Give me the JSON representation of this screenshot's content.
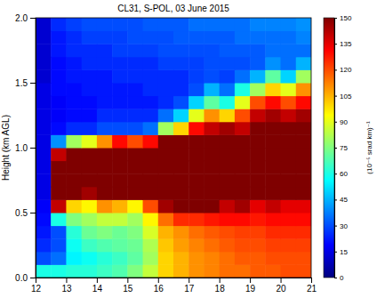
{
  "chart_data": {
    "type": "heatmap",
    "title": "CL31, S-POL, 03 June 2015",
    "ylabel": "Height (km AGL)",
    "colorbar_label": "(10⁻⁵ srad km)⁻¹",
    "xlim": [
      12,
      21
    ],
    "xticks": [
      12,
      13,
      14,
      15,
      16,
      17,
      18,
      19,
      20,
      21
    ],
    "ylim": [
      0,
      2
    ],
    "yticks": [
      {
        "value": 0,
        "label": "0.0"
      },
      {
        "value": 0.5,
        "label": "0.5"
      },
      {
        "value": 1,
        "label": "1.0"
      },
      {
        "value": 1.5,
        "label": "1.5"
      },
      {
        "value": 2,
        "label": "2.0"
      }
    ],
    "x_bins": [
      12,
      12.5,
      13,
      13.5,
      14,
      14.5,
      15,
      15.5,
      16,
      16.5,
      17,
      17.5,
      18,
      18.5,
      19,
      19.5,
      20,
      20.5,
      21
    ],
    "y_bins": [
      0,
      0.1,
      0.2,
      0.3,
      0.4,
      0.5,
      0.6,
      0.7,
      0.8,
      0.9,
      1.0,
      1.1,
      1.2,
      1.3,
      1.4,
      1.5,
      1.6,
      1.7,
      1.8,
      1.9,
      2.0
    ],
    "values": [
      [
        60,
        60,
        62,
        62,
        65,
        68,
        75,
        85,
        100,
        105,
        110,
        112,
        115,
        115,
        118,
        118,
        120,
        120
      ],
      [
        30,
        35,
        55,
        58,
        62,
        65,
        70,
        80,
        100,
        105,
        110,
        112,
        115,
        118,
        118,
        120,
        120,
        120
      ],
      [
        25,
        30,
        58,
        65,
        68,
        70,
        72,
        82,
        102,
        108,
        112,
        115,
        118,
        120,
        120,
        122,
        122,
        122
      ],
      [
        22,
        30,
        62,
        72,
        75,
        72,
        75,
        88,
        105,
        110,
        115,
        118,
        120,
        122,
        122,
        125,
        125,
        125
      ],
      [
        20,
        60,
        75,
        80,
        85,
        85,
        80,
        95,
        115,
        125,
        125,
        128,
        130,
        130,
        128,
        130,
        130,
        130
      ],
      [
        18,
        140,
        100,
        95,
        110,
        105,
        95,
        120,
        145,
        150,
        150,
        150,
        140,
        145,
        135,
        140,
        135,
        135
      ],
      [
        15,
        150,
        150,
        145,
        150,
        150,
        150,
        150,
        150,
        150,
        150,
        150,
        150,
        150,
        150,
        150,
        150,
        150
      ],
      [
        15,
        150,
        150,
        150,
        150,
        150,
        150,
        150,
        150,
        150,
        150,
        150,
        150,
        150,
        150,
        150,
        150,
        150
      ],
      [
        15,
        150,
        150,
        150,
        150,
        150,
        150,
        150,
        150,
        150,
        150,
        150,
        150,
        150,
        150,
        150,
        150,
        150
      ],
      [
        15,
        140,
        150,
        150,
        150,
        150,
        150,
        150,
        150,
        150,
        150,
        150,
        150,
        150,
        150,
        150,
        150,
        150
      ],
      [
        15,
        40,
        80,
        90,
        110,
        130,
        120,
        130,
        150,
        150,
        150,
        150,
        150,
        150,
        150,
        150,
        150,
        150
      ],
      [
        15,
        20,
        25,
        25,
        30,
        30,
        30,
        35,
        80,
        100,
        130,
        140,
        145,
        140,
        150,
        150,
        150,
        150
      ],
      [
        15,
        18,
        20,
        20,
        25,
        25,
        25,
        25,
        35,
        50,
        90,
        110,
        100,
        120,
        140,
        145,
        140,
        145
      ],
      [
        15,
        18,
        20,
        20,
        22,
        22,
        22,
        22,
        25,
        30,
        50,
        70,
        60,
        90,
        120,
        130,
        120,
        130
      ],
      [
        15,
        20,
        20,
        22,
        22,
        22,
        22,
        25,
        25,
        25,
        30,
        45,
        35,
        60,
        80,
        100,
        90,
        110
      ],
      [
        12,
        20,
        22,
        22,
        22,
        25,
        25,
        25,
        25,
        25,
        28,
        30,
        28,
        35,
        45,
        70,
        50,
        80
      ],
      [
        12,
        20,
        22,
        25,
        25,
        25,
        25,
        25,
        28,
        28,
        28,
        30,
        30,
        30,
        32,
        40,
        35,
        45
      ],
      [
        12,
        22,
        25,
        25,
        25,
        28,
        28,
        28,
        30,
        30,
        30,
        30,
        32,
        32,
        32,
        35,
        35,
        35
      ],
      [
        12,
        22,
        25,
        28,
        28,
        28,
        30,
        30,
        30,
        32,
        32,
        32,
        32,
        35,
        35,
        35,
        35,
        38
      ],
      [
        12,
        25,
        28,
        30,
        30,
        30,
        30,
        32,
        32,
        32,
        35,
        35,
        35,
        35,
        38,
        38,
        38,
        40
      ]
    ],
    "clim": [
      0,
      150
    ],
    "cticks": [
      0,
      15,
      30,
      45,
      60,
      75,
      90,
      105,
      120,
      135,
      150
    ]
  }
}
